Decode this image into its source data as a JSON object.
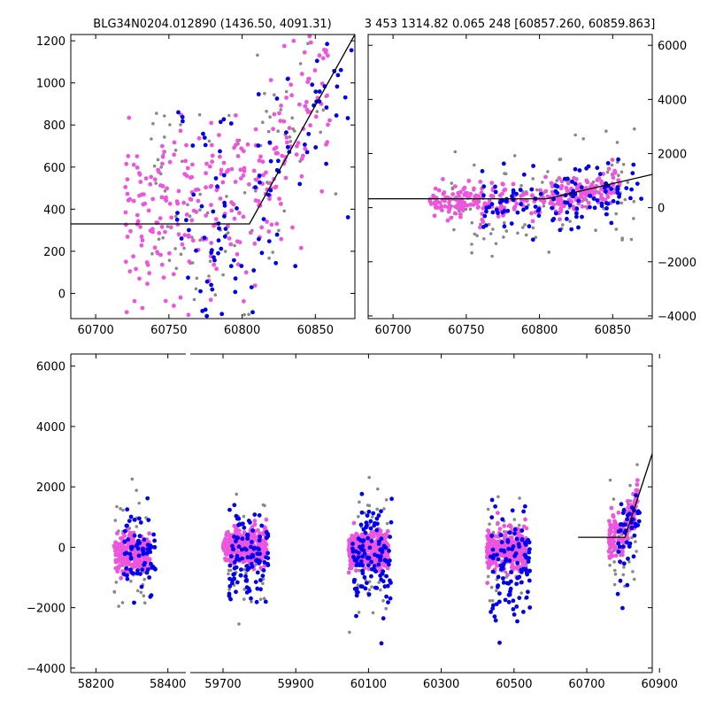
{
  "titles": {
    "left": "BLG34N0204.012890 (1436.50, 4091.31)",
    "right": "3 453 1314.82 0.065 248 [60857.260, 60859.863]"
  },
  "colors": {
    "pink": "#ee55dd",
    "blue": "#0000ee",
    "gray": "#888888",
    "line": "#000000",
    "axes": "#000000"
  },
  "chart_data": [
    {
      "name": "zoom-left",
      "type": "scatter",
      "xlim": [
        60683,
        60877
      ],
      "ylim": [
        -120,
        1230
      ],
      "xticks": [
        "60700",
        "60750",
        "60800",
        "60850"
      ],
      "yticks": [
        "0",
        "200",
        "400",
        "600",
        "800",
        "1000",
        "1200"
      ],
      "model_line": [
        [
          60683,
          330
        ],
        [
          60805,
          330
        ],
        [
          60877,
          1230
        ]
      ],
      "series": [
        {
          "color": "pink",
          "clusters": [
            [
              60790,
              400,
              70,
              230,
              300
            ]
          ]
        },
        {
          "color": "blue",
          "clusters": [
            [
              60815,
              320,
              60,
              300,
              120
            ]
          ]
        },
        {
          "color": "gray",
          "clusters": [
            [
              60800,
              450,
              65,
              320,
              110
            ]
          ]
        }
      ]
    },
    {
      "name": "zoom-right",
      "type": "scatter",
      "xlim": [
        60683,
        60877
      ],
      "ylim": [
        -4100,
        6400
      ],
      "xticks": [
        "60700",
        "60750",
        "60800",
        "60850"
      ],
      "yticks": [
        "-4000",
        "-2000",
        "0",
        "2000",
        "4000",
        "6000"
      ],
      "model_line": [
        [
          60676,
          330
        ],
        [
          60805,
          330
        ],
        [
          60877,
          1230
        ]
      ],
      "series": [
        {
          "color": "pink",
          "clusters": [
            [
              60790,
              250,
              65,
              330,
              320
            ]
          ]
        },
        {
          "color": "blue",
          "clusters": [
            [
              60815,
              100,
              55,
              550,
              120
            ]
          ]
        },
        {
          "color": "gray",
          "clusters": [
            [
              60800,
              200,
              65,
              900,
              110
            ]
          ]
        }
      ]
    },
    {
      "name": "full-light-curve",
      "type": "scatter",
      "ylim": [
        -4150,
        6400
      ],
      "yticks": [
        "-4000",
        "-2000",
        "0",
        "2000",
        "4000",
        "6000"
      ],
      "segments": [
        {
          "xlim": [
            58130,
            58450
          ],
          "xticks": [
            "58200",
            "58400"
          ],
          "model_line": []
        },
        {
          "xlim": [
            59610,
            60880
          ],
          "xticks": [
            "59700",
            "59900",
            "60100",
            "60300",
            "60500",
            "60700",
            "60900"
          ],
          "model_line": [
            [
              60676,
              330
            ],
            [
              60805,
              330
            ],
            [
              60880,
              3100
            ]
          ]
        }
      ],
      "series": [
        {
          "color": "pink",
          "clusters": [
            [
              58300,
              -200,
              50,
              350,
              220
            ],
            [
              59760,
              0,
              60,
              300,
              320
            ],
            [
              60100,
              -100,
              55,
              330,
              320
            ],
            [
              60480,
              -100,
              55,
              330,
              320
            ],
            [
              60800,
              400,
              40,
              380,
              130
            ]
          ]
        },
        {
          "color": "blue",
          "clusters": [
            [
              58320,
              -250,
              45,
              700,
              70
            ],
            [
              59770,
              -300,
              55,
              850,
              110
            ],
            [
              60110,
              -450,
              55,
              850,
              120
            ],
            [
              60490,
              -550,
              55,
              850,
              110
            ],
            [
              60815,
              100,
              30,
              650,
              45
            ]
          ]
        },
        {
          "color": "gray",
          "clusters": [
            [
              58300,
              -300,
              50,
              1000,
              50
            ],
            [
              59760,
              -200,
              55,
              1000,
              60
            ],
            [
              60100,
              -300,
              55,
              1000,
              60
            ],
            [
              60480,
              -350,
              55,
              1000,
              60
            ],
            [
              60800,
              0,
              40,
              1100,
              40
            ]
          ]
        }
      ]
    }
  ]
}
